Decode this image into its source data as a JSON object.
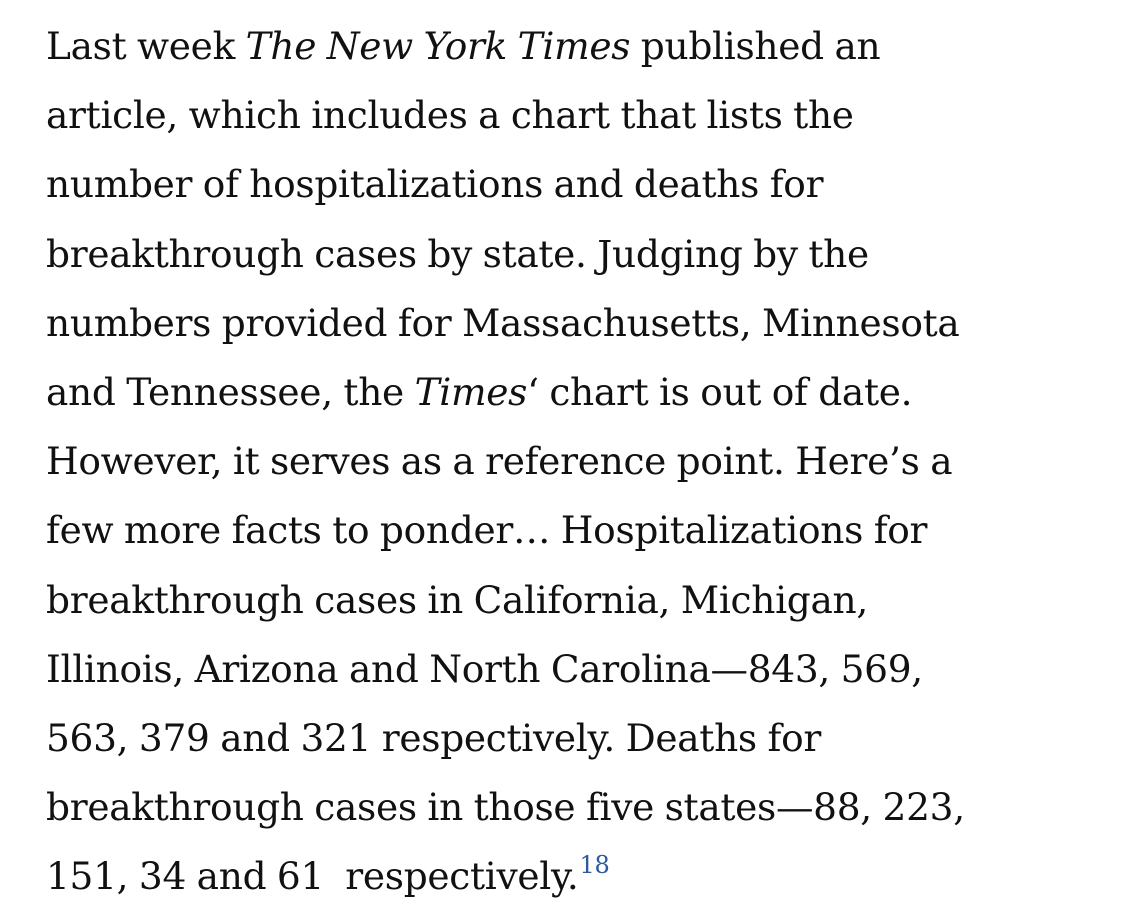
{
  "paragraph": {
    "lines": [
      {
        "pre": "Last week ",
        "ital": "The New York Times",
        "post": " published an"
      },
      {
        "pre": "article, which includes a chart that lists the"
      },
      {
        "pre": "number of hospitalizations and deaths for"
      },
      {
        "pre": "breakthrough cases by state. Judging by the"
      },
      {
        "pre": "numbers provided for Massachusetts, Minnesota"
      },
      {
        "pre": "and Tennessee, the ",
        "ital": "Times",
        "post": "‘ chart is out of date."
      },
      {
        "pre": "However, it serves as a reference point. Here’s a"
      },
      {
        "pre": "few more facts to ponder… Hospitalizations for"
      },
      {
        "pre": "breakthrough cases in California, Michigan,"
      },
      {
        "pre": "Illinois, Arizona and North Carolina—843, 569,"
      },
      {
        "pre": "563, 379 and 321 respectively. Deaths for"
      },
      {
        "pre": "breakthrough cases in those five states—88, 223,"
      },
      {
        "pre": "151, 34 and 61  respectively."
      }
    ],
    "footnote_ref": "18"
  }
}
